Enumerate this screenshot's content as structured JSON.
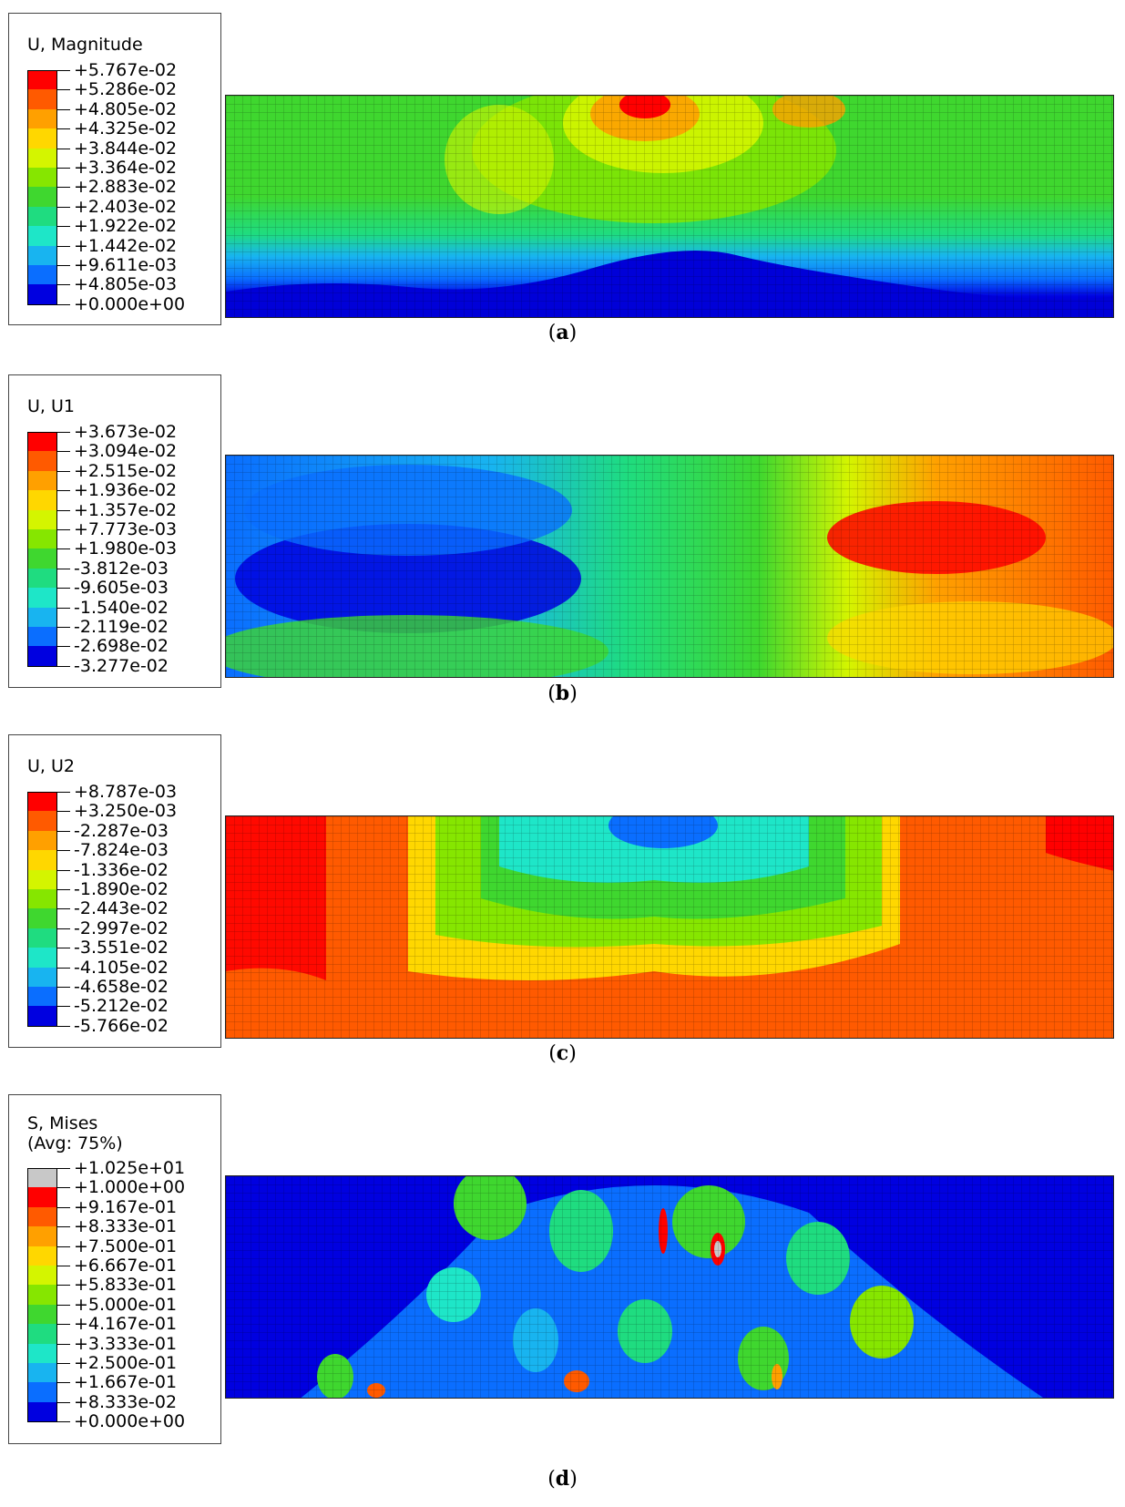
{
  "panels": [
    {
      "title": "U, Magnitude",
      "caption_letter": "a",
      "labels": [
        "+5.767e-02",
        "+5.286e-02",
        "+4.805e-02",
        "+4.325e-02",
        "+3.844e-02",
        "+3.364e-02",
        "+2.883e-02",
        "+2.403e-02",
        "+1.922e-02",
        "+1.442e-02",
        "+9.611e-03",
        "+4.805e-03",
        "+0.000e+00"
      ],
      "colors": [
        "#ff0000",
        "#ff5a00",
        "#ffa000",
        "#ffd700",
        "#d4f500",
        "#86e600",
        "#3fd72f",
        "#1fdc80",
        "#1ee6c8",
        "#18b4f0",
        "#0a6eff",
        "#0000e0"
      ]
    },
    {
      "title": "U, U1",
      "caption_letter": "b",
      "labels": [
        "+3.673e-02",
        "+3.094e-02",
        "+2.515e-02",
        "+1.936e-02",
        "+1.357e-02",
        "+7.773e-03",
        "+1.980e-03",
        "-3.812e-03",
        "-9.605e-03",
        "-1.540e-02",
        "-2.119e-02",
        "-2.698e-02",
        "-3.277e-02"
      ],
      "colors": [
        "#ff0000",
        "#ff5a00",
        "#ffa000",
        "#ffd700",
        "#d4f500",
        "#86e600",
        "#3fd72f",
        "#1fdc80",
        "#1ee6c8",
        "#18b4f0",
        "#0a6eff",
        "#0000e0"
      ]
    },
    {
      "title": "U, U2",
      "caption_letter": "c",
      "labels": [
        "+8.787e-03",
        "+3.250e-03",
        "-2.287e-03",
        "-7.824e-03",
        "-1.336e-02",
        "-1.890e-02",
        "-2.443e-02",
        "-2.997e-02",
        "-3.551e-02",
        "-4.105e-02",
        "-4.658e-02",
        "-5.212e-02",
        "-5.766e-02"
      ],
      "colors": [
        "#ff0000",
        "#ff5a00",
        "#ffa000",
        "#ffd700",
        "#d4f500",
        "#86e600",
        "#3fd72f",
        "#1fdc80",
        "#1ee6c8",
        "#18b4f0",
        "#0a6eff",
        "#0000e0"
      ]
    },
    {
      "title": "S, Mises\n(Avg: 75%)",
      "caption_letter": "d",
      "labels": [
        "+1.025e+01",
        "+1.000e+00",
        "+9.167e-01",
        "+8.333e-01",
        "+7.500e-01",
        "+6.667e-01",
        "+5.833e-01",
        "+5.000e-01",
        "+4.167e-01",
        "+3.333e-01",
        "+2.500e-01",
        "+1.667e-01",
        "+8.333e-02",
        "+0.000e+00"
      ],
      "colors": [
        "#c8c8c8",
        "#ff0000",
        "#ff5a00",
        "#ffa000",
        "#ffd700",
        "#d4f500",
        "#86e600",
        "#3fd72f",
        "#1fdc80",
        "#1ee6c8",
        "#18b4f0",
        "#0a6eff",
        "#0000e0"
      ]
    }
  ]
}
